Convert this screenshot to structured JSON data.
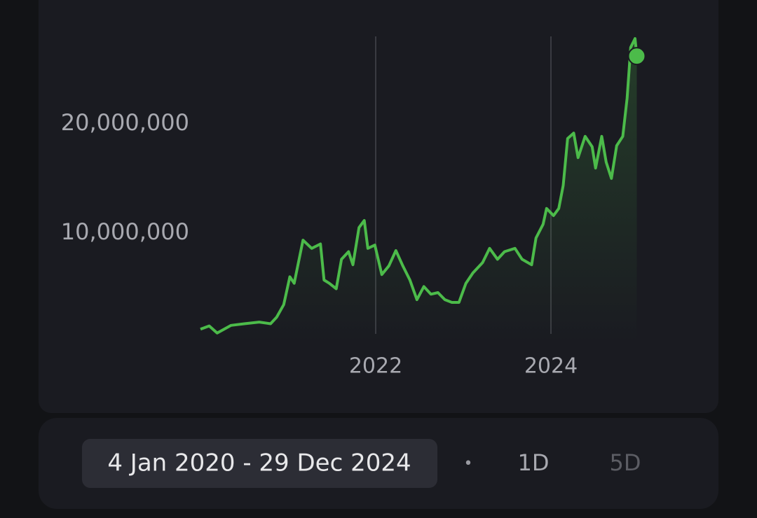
{
  "chart_data": {
    "type": "line",
    "color": "#4cbb4a",
    "x": [
      2020.0,
      2020.1,
      2020.19,
      2020.35,
      2020.5,
      2020.67,
      2020.8,
      2020.87,
      2020.95,
      2021.02,
      2021.07,
      2021.17,
      2021.27,
      2021.37,
      2021.41,
      2021.47,
      2021.55,
      2021.61,
      2021.69,
      2021.74,
      2021.81,
      2021.87,
      2021.91,
      2021.99,
      2022.07,
      2022.15,
      2022.23,
      2022.31,
      2022.39,
      2022.47,
      2022.55,
      2022.63,
      2022.71,
      2022.79,
      2022.87,
      2022.95,
      2023.03,
      2023.11,
      2023.22,
      2023.3,
      2023.39,
      2023.47,
      2023.59,
      2023.67,
      2023.78,
      2023.83,
      2023.91,
      2023.95,
      2024.03,
      2024.09,
      2024.14,
      2024.19,
      2024.26,
      2024.31,
      2024.39,
      2024.47,
      2024.51,
      2024.58,
      2024.63,
      2024.69,
      2024.75,
      2024.82,
      2024.87,
      2024.91,
      2024.96,
      2024.98
    ],
    "values": [
      1200000,
      1500000,
      850000,
      1550000,
      1700000,
      1850000,
      1700000,
      2300000,
      3450000,
      6000000,
      5400000,
      9350000,
      8600000,
      9000000,
      5700000,
      5400000,
      4900000,
      7600000,
      8300000,
      7100000,
      10500000,
      11150000,
      8600000,
      8900000,
      6200000,
      7000000,
      8400000,
      7000000,
      5700000,
      3900000,
      5100000,
      4400000,
      4550000,
      3900000,
      3650000,
      3650000,
      5400000,
      6350000,
      7300000,
      8600000,
      7600000,
      8300000,
      8600000,
      7600000,
      7100000,
      9550000,
      10800000,
      12250000,
      11600000,
      12250000,
      14350000,
      18650000,
      19150000,
      16900000,
      18850000,
      17900000,
      15950000,
      18850000,
      16500000,
      15000000,
      18000000,
      18850000,
      22350000,
      27000000,
      27800000,
      26200000
    ],
    "xlim": [
      2020.0,
      2025.0
    ],
    "xticks": [
      2022,
      2024
    ],
    "ylim": [
      0,
      28000000
    ],
    "yticks": [
      {
        "value": 10000000,
        "label": "10,000,000"
      },
      {
        "value": 20000000,
        "label": "20,000,000"
      }
    ]
  },
  "controls": {
    "range": "4 Jan 2020 - 29 Dec 2024",
    "separator": "•",
    "options": [
      "1D",
      "5D"
    ]
  }
}
